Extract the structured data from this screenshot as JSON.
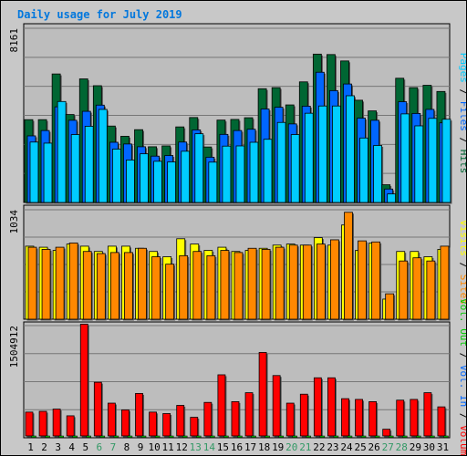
{
  "title": "Daily usage for July 2019",
  "colors": {
    "hits": "#006633",
    "files": "#0066ff",
    "pages": "#00ccff",
    "visits": "#ffff00",
    "sites": "#ff8800",
    "vol_in": "#ff0000",
    "vol_out": "#00cc00",
    "weekend": "#339966",
    "weekday": "#000000"
  },
  "legends": {
    "top": [
      {
        "text": "Hits",
        "color": "#006633"
      },
      {
        "text": "Files",
        "color": "#0066ff"
      },
      {
        "text": "Pages",
        "color": "#00ccff"
      }
    ],
    "middle": [
      {
        "text": "Sites",
        "color": "#ff8800"
      },
      {
        "text": "Visits",
        "color": "#ffff00"
      }
    ],
    "bottom": [
      {
        "text": "Volume",
        "color": "#ff0000"
      },
      {
        "text": "Vol. In",
        "color": "#0066ff"
      },
      {
        "text": "Vol. Out",
        "color": "#00cc00"
      }
    ]
  },
  "chart_data": [
    {
      "type": "bar",
      "name": "hits-files-pages",
      "ymax_label": "8161",
      "ylim": [
        0,
        8161
      ],
      "categories": [
        "1",
        "2",
        "3",
        "4",
        "5",
        "6",
        "7",
        "8",
        "9",
        "10",
        "11",
        "12",
        "13",
        "14",
        "15",
        "16",
        "17",
        "18",
        "19",
        "20",
        "21",
        "22",
        "23",
        "24",
        "25",
        "26",
        "27",
        "28",
        "29",
        "30",
        "31"
      ],
      "weekend": [
        6,
        7,
        13,
        14,
        20,
        21,
        27,
        28
      ],
      "series": [
        {
          "name": "Hits",
          "values": [
            3880,
            3880,
            6020,
            4120,
            5790,
            5470,
            3580,
            3100,
            3410,
            2610,
            2650,
            3540,
            3980,
            2600,
            3860,
            3890,
            3970,
            5330,
            5380,
            4570,
            5650,
            6950,
            6930,
            6630,
            4790,
            4290,
            830,
            5820,
            5380,
            5490,
            5200
          ]
        },
        {
          "name": "Files",
          "values": [
            3120,
            3370,
            4480,
            3850,
            4270,
            4560,
            2820,
            2740,
            2610,
            2170,
            2200,
            2830,
            3400,
            2120,
            3190,
            3370,
            3430,
            4380,
            4460,
            3680,
            4510,
            6100,
            5240,
            5550,
            3950,
            3850,
            630,
            4720,
            4170,
            4360,
            3730
          ]
        },
        {
          "name": "Pages",
          "values": [
            2830,
            2780,
            4730,
            3180,
            3570,
            4360,
            2500,
            1990,
            2280,
            1930,
            1900,
            2400,
            3220,
            1890,
            2640,
            2650,
            2820,
            2960,
            3750,
            3180,
            4180,
            4520,
            4520,
            5000,
            3020,
            2670,
            400,
            4150,
            3590,
            3940,
            3900
          ]
        }
      ]
    },
    {
      "type": "bar",
      "name": "visits-sites",
      "ymax_label": "1034",
      "ylim": [
        0,
        1034
      ],
      "categories": [
        "1",
        "2",
        "3",
        "4",
        "5",
        "6",
        "7",
        "8",
        "9",
        "10",
        "11",
        "12",
        "13",
        "14",
        "15",
        "16",
        "17",
        "18",
        "19",
        "20",
        "21",
        "22",
        "23",
        "24",
        "25",
        "26",
        "27",
        "28",
        "29",
        "30",
        "31"
      ],
      "series": [
        {
          "name": "Visits",
          "values": [
            690,
            680,
            650,
            710,
            690,
            640,
            690,
            690,
            670,
            640,
            590,
            760,
            710,
            650,
            680,
            640,
            650,
            670,
            700,
            710,
            700,
            770,
            700,
            890,
            650,
            720,
            190,
            640,
            640,
            590,
            660
          ]
        },
        {
          "name": "Sites",
          "values": [
            680,
            660,
            680,
            720,
            640,
            620,
            630,
            630,
            670,
            590,
            520,
            600,
            640,
            600,
            650,
            630,
            670,
            660,
            680,
            700,
            700,
            710,
            750,
            1010,
            740,
            730,
            240,
            550,
            580,
            550,
            690
          ]
        }
      ]
    },
    {
      "type": "bar",
      "name": "volume",
      "ymax_label": "1504912",
      "ylim": [
        0,
        1504912
      ],
      "categories": [
        "1",
        "2",
        "3",
        "4",
        "5",
        "6",
        "7",
        "8",
        "9",
        "10",
        "11",
        "12",
        "13",
        "14",
        "15",
        "16",
        "17",
        "18",
        "19",
        "20",
        "21",
        "22",
        "23",
        "24",
        "25",
        "26",
        "27",
        "28",
        "29",
        "30",
        "31"
      ],
      "series": [
        {
          "name": "Volume",
          "values": [
            320000,
            330000,
            360000,
            270000,
            1500000,
            720000,
            440000,
            350000,
            570000,
            320000,
            300000,
            410000,
            250000,
            450000,
            820000,
            460000,
            580000,
            1120000,
            810000,
            440000,
            560000,
            780000,
            780000,
            500000,
            490000,
            460000,
            90000,
            480000,
            490000,
            580000,
            390000
          ]
        }
      ]
    }
  ]
}
